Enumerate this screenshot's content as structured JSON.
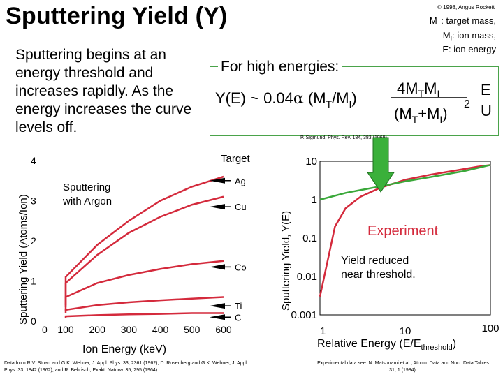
{
  "title": "Sputtering Yield (Y)",
  "copyright": "© 1998, Angus Rockett",
  "definitions": [
    "M<sub>T</sub>: target mass,",
    "M<sub>I</sub>: ion mass,",
    "E: ion energy"
  ],
  "definitions_text": [
    "MT: target mass,",
    "MI: ion mass,",
    "E: ion energy"
  ],
  "intro_text": "Sputtering begins at an energy threshold and increases rapidly.  As the energy increases the curve levels off.",
  "high_energy_label": "For high energies:",
  "formula": {
    "lhs": "Y(E) ~ 0.04",
    "alpha": "α",
    "ratio": "(MT/MI)",
    "numerator": "4MTMI",
    "denominator": "(MT+MI)",
    "exponent": "2",
    "energy_fraction_top": "E",
    "energy_fraction_bottom": "U"
  },
  "formula_reference": "P. Sigmund, Phys. Rev. 184, 383 (1969).",
  "left_chart": {
    "ylabel": "Sputtering Yield (Atoms/Ion)",
    "xlabel": "Ion Energy (keV)",
    "annotation": [
      "Sputtering",
      "with Argon"
    ],
    "target_header": "Target",
    "x_ticks": [
      "0",
      "100",
      "200",
      "300",
      "400",
      "500",
      "600"
    ],
    "y_ticks": [
      "0",
      "1",
      "2",
      "3",
      "4"
    ],
    "line_color": "#d42a3c"
  },
  "right_chart": {
    "ylabel": "Sputtering Yield, Y(E)",
    "xlabel": "Relative Energy (E/E",
    "xlabel_sub": "threshold",
    "xlabel_end": ")",
    "x_ticks": [
      "1",
      "10",
      "100"
    ],
    "y_ticks": [
      "10",
      "1",
      "0.1",
      "0.01",
      "0.001"
    ],
    "experiment_label": "Experiment",
    "yield_note": [
      "Yield reduced",
      "near threshold."
    ],
    "experiment_color": "#d42a3c",
    "theory_color": "#3aa83a"
  },
  "chart_data": [
    {
      "type": "line",
      "title": "",
      "xlabel": "Ion Energy (keV)",
      "ylabel": "Sputtering Yield (Atoms/Ion)",
      "xlim": [
        0,
        650
      ],
      "ylim": [
        0,
        4
      ],
      "x": [
        50,
        100,
        200,
        300,
        400,
        500,
        600
      ],
      "series": [
        {
          "name": "Ag",
          "values": [
            0.4,
            1.1,
            1.9,
            2.5,
            3.0,
            3.35,
            3.6
          ]
        },
        {
          "name": "Cu",
          "values": [
            0.35,
            0.95,
            1.65,
            2.2,
            2.6,
            2.9,
            3.1
          ]
        },
        {
          "name": "Co",
          "values": [
            0.25,
            0.6,
            0.95,
            1.15,
            1.3,
            1.42,
            1.5
          ]
        },
        {
          "name": "Ti",
          "values": [
            0.2,
            0.28,
            0.4,
            0.47,
            0.52,
            0.56,
            0.6
          ]
        },
        {
          "name": "C",
          "values": [
            0.08,
            0.12,
            0.15,
            0.17,
            0.18,
            0.2,
            0.2
          ]
        }
      ]
    },
    {
      "type": "line",
      "title": "",
      "xlabel": "Relative Energy (E/Ethreshold)",
      "ylabel": "Sputtering Yield, Y(E)",
      "xscale": "log",
      "yscale": "log",
      "xlim": [
        1,
        100
      ],
      "ylim": [
        0.001,
        10
      ],
      "series": [
        {
          "name": "Experiment",
          "x": [
            1.0,
            1.5,
            2,
            3,
            5,
            10,
            20,
            40,
            70,
            100
          ],
          "values": [
            0.003,
            0.2,
            0.6,
            1.2,
            2.0,
            3.3,
            4.5,
            5.8,
            7.2,
            8.0
          ]
        },
        {
          "name": "",
          "x": [
            1,
            2,
            5,
            10,
            20,
            50,
            100
          ],
          "values": [
            1.0,
            1.5,
            2.2,
            3.0,
            3.9,
            5.6,
            8.0
          ]
        }
      ]
    }
  ],
  "footnote_left": "Data from R.V. Stuart and G.K. Wehner, J. Appl. Phys. 33, 2361 (1962); D. Rosenberg and G.K. Wehner, J. Appl. Phys. 33, 1842 (1962); and R. Behrisch, Exakt. Naturw. 35, 295 (1964).",
  "footnote_right": "Experimental data see: N. Matsunami et al., Atomic Data and Nucl. Data Tables 31, 1 (1984)."
}
